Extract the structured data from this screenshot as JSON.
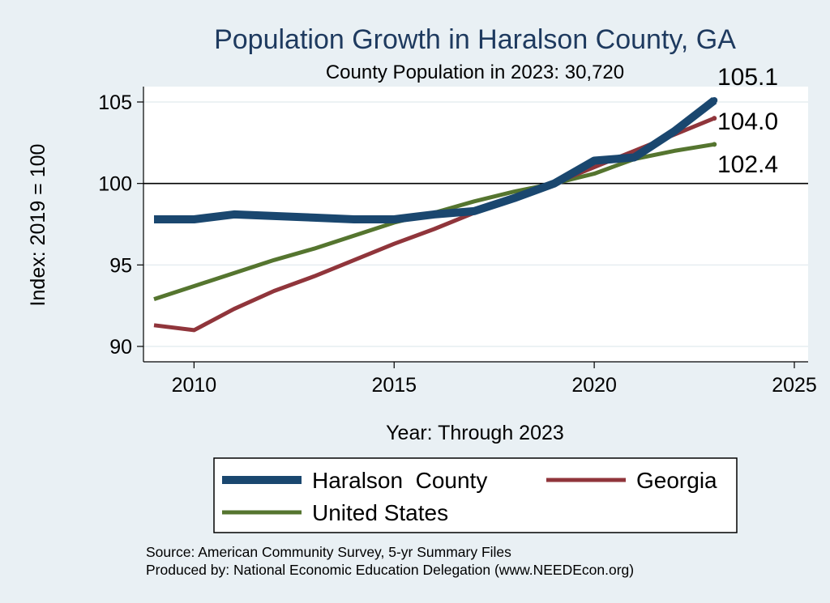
{
  "chart_data": {
    "type": "line",
    "title": "Population Growth in Haralson County, GA",
    "subtitle": "County Population in 2023: 30,720",
    "xlabel": "Year: Through 2023",
    "ylabel": "Index: 2019 = 100",
    "xlim": [
      2009,
      2025.3
    ],
    "ylim": [
      89.2,
      106
    ],
    "x_ticks": [
      2010,
      2015,
      2020,
      2025
    ],
    "y_ticks": [
      90,
      95,
      100,
      105
    ],
    "reference_line": 100,
    "x": [
      2009,
      2010,
      2011,
      2012,
      2013,
      2014,
      2015,
      2016,
      2017,
      2018,
      2019,
      2020,
      2021,
      2022,
      2023
    ],
    "series": [
      {
        "name": "Haralson  County",
        "color": "#1a476f",
        "values": [
          97.8,
          97.8,
          98.1,
          98.0,
          97.9,
          97.8,
          97.8,
          98.1,
          98.3,
          99.1,
          100.0,
          101.4,
          101.6,
          103.2,
          105.1
        ],
        "end_label": "105.1"
      },
      {
        "name": "Georgia",
        "color": "#90353b",
        "values": [
          91.3,
          91.0,
          92.3,
          93.4,
          94.3,
          95.3,
          96.3,
          97.2,
          98.2,
          99.1,
          100.0,
          101.0,
          102.0,
          103.0,
          104.0
        ],
        "end_label": "104.0"
      },
      {
        "name": "United States",
        "color": "#55752f",
        "values": [
          92.9,
          93.7,
          94.5,
          95.3,
          96.0,
          96.8,
          97.6,
          98.2,
          98.9,
          99.5,
          100.0,
          100.6,
          101.5,
          102.0,
          102.4
        ],
        "end_label": "102.4"
      }
    ],
    "legend": {
      "position": "bottom",
      "items": [
        "Haralson  County",
        "Georgia",
        "United States"
      ]
    }
  },
  "notes": {
    "source": "Source: American Community Survey, 5-yr Summary Files",
    "produced_by": "Produced by: National Economic Education Delegation (www.NEEDEcon.org)"
  }
}
